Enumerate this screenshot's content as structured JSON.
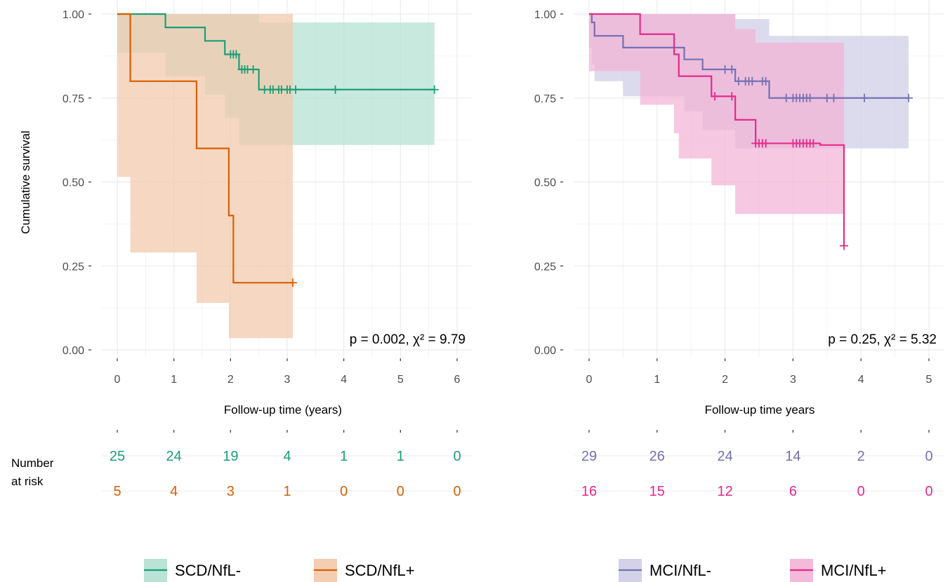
{
  "risk_label": [
    "Number",
    "at risk"
  ],
  "chart_data": [
    {
      "type": "line",
      "subtype": "kaplan-meier",
      "title": "",
      "xlabel": "Follow-up time (years)",
      "ylabel": "Cumulative survival",
      "xlim": [
        0,
        6
      ],
      "ylim": [
        0,
        1
      ],
      "x_ticks": [
        0,
        1,
        2,
        3,
        4,
        5,
        6
      ],
      "y_ticks": [
        "0.00",
        "0.25",
        "0.50",
        "0.75",
        "1.00"
      ],
      "grid": true,
      "legend_position": "bottom",
      "annotation": "p = 0.002, χ² = 9.79",
      "series": [
        {
          "name": "SCD/NfL-",
          "color": "#1b9e77",
          "fill": "#b3e0d1",
          "steps": [
            [
              0,
              1.0
            ],
            [
              0.85,
              0.96
            ],
            [
              1.55,
              0.92
            ],
            [
              1.9,
              0.88
            ],
            [
              2.15,
              0.835
            ],
            [
              2.5,
              0.775
            ],
            [
              5.6,
              0.775
            ]
          ],
          "ci_upper": [
            [
              0,
              1.0
            ],
            [
              0.85,
              1.0
            ],
            [
              1.55,
              1.0
            ],
            [
              1.9,
              1.0
            ],
            [
              2.15,
              1.0
            ],
            [
              2.5,
              0.975
            ],
            [
              5.6,
              0.975
            ]
          ],
          "ci_lower": [
            [
              0,
              1.0
            ],
            [
              0.85,
              0.885
            ],
            [
              1.55,
              0.815
            ],
            [
              1.9,
              0.76
            ],
            [
              2.15,
              0.69
            ],
            [
              2.5,
              0.61
            ],
            [
              5.6,
              0.61
            ]
          ],
          "censor": [
            2.0,
            2.05,
            2.1,
            2.2,
            2.25,
            2.3,
            2.4,
            2.6,
            2.7,
            2.75,
            2.85,
            2.9,
            3.0,
            3.05,
            3.15,
            3.85,
            5.6
          ],
          "at_risk": [
            "25",
            "24",
            "19",
            "4",
            "1",
            "1",
            "0"
          ]
        },
        {
          "name": "SCD/NfL+",
          "color": "#d95f02",
          "fill": "#f2c9ab",
          "steps": [
            [
              0,
              1.0
            ],
            [
              0.23,
              0.8
            ],
            [
              1.4,
              0.6
            ],
            [
              1.97,
              0.4
            ],
            [
              2.05,
              0.2
            ],
            [
              3.1,
              0.2
            ]
          ],
          "ci_upper": [
            [
              0,
              1.0
            ],
            [
              0.23,
              1.0
            ],
            [
              1.4,
              1.0
            ],
            [
              1.97,
              1.0
            ],
            [
              2.05,
              1.0
            ],
            [
              3.1,
              1.0
            ]
          ],
          "ci_lower": [
            [
              0,
              1.0
            ],
            [
              0.23,
              0.515
            ],
            [
              1.4,
              0.29
            ],
            [
              1.97,
              0.14
            ],
            [
              2.05,
              0.035
            ],
            [
              3.1,
              0.035
            ]
          ],
          "censor": [
            3.1
          ],
          "at_risk": [
            "5",
            "4",
            "3",
            "1",
            "0",
            "0",
            "0"
          ]
        }
      ]
    },
    {
      "type": "line",
      "subtype": "kaplan-meier",
      "title": "",
      "xlabel": "Follow-up time years",
      "ylabel": "",
      "xlim": [
        0,
        5
      ],
      "ylim": [
        0,
        1
      ],
      "x_ticks": [
        0,
        1,
        2,
        3,
        4,
        5
      ],
      "y_ticks": [
        "0.00",
        "0.25",
        "0.50",
        "0.75",
        "1.00"
      ],
      "grid": true,
      "legend_position": "bottom",
      "annotation": "p = 0.25, χ² = 5.32",
      "series": [
        {
          "name": "MCI/NfL-",
          "color": "#7570b3",
          "fill": "#cfcde6",
          "steps": [
            [
              0,
              1.0
            ],
            [
              0.04,
              0.975
            ],
            [
              0.08,
              0.935
            ],
            [
              0.5,
              0.9
            ],
            [
              1.4,
              0.865
            ],
            [
              1.67,
              0.835
            ],
            [
              2.15,
              0.8
            ],
            [
              2.65,
              0.75
            ],
            [
              4.7,
              0.75
            ]
          ],
          "ci_upper": [
            [
              0,
              1.0
            ],
            [
              0.04,
              1.0
            ],
            [
              0.08,
              1.0
            ],
            [
              0.5,
              1.0
            ],
            [
              1.4,
              1.0
            ],
            [
              1.67,
              1.0
            ],
            [
              2.15,
              0.985
            ],
            [
              2.65,
              0.935
            ],
            [
              4.7,
              0.935
            ]
          ],
          "ci_lower": [
            [
              0,
              1.0
            ],
            [
              0.04,
              0.9
            ],
            [
              0.08,
              0.85
            ],
            [
              0.5,
              0.8
            ],
            [
              1.4,
              0.755
            ],
            [
              1.67,
              0.71
            ],
            [
              2.15,
              0.655
            ],
            [
              2.65,
              0.6
            ],
            [
              4.7,
              0.6
            ]
          ],
          "censor": [
            2.0,
            2.1,
            2.2,
            2.3,
            2.35,
            2.4,
            2.55,
            2.6,
            2.9,
            3.0,
            3.05,
            3.1,
            3.15,
            3.2,
            3.25,
            3.5,
            3.6,
            4.05,
            4.7
          ],
          "at_risk": [
            "29",
            "26",
            "24",
            "14",
            "2",
            "0"
          ]
        },
        {
          "name": "MCI/NfL+",
          "color": "#e7298a",
          "fill": "#f3b3d5",
          "steps": [
            [
              0,
              1.0
            ],
            [
              0.75,
              0.94
            ],
            [
              1.25,
              0.88
            ],
            [
              1.32,
              0.815
            ],
            [
              1.8,
              0.755
            ],
            [
              2.15,
              0.685
            ],
            [
              2.45,
              0.615
            ],
            [
              3.4,
              0.61
            ],
            [
              3.75,
              0.31
            ]
          ],
          "ci_upper": [
            [
              0,
              1.0
            ],
            [
              0.75,
              1.0
            ],
            [
              1.25,
              1.0
            ],
            [
              1.32,
              1.0
            ],
            [
              1.8,
              1.0
            ],
            [
              2.15,
              0.955
            ],
            [
              2.45,
              0.915
            ],
            [
              3.75,
              0.915
            ]
          ],
          "ci_lower": [
            [
              0,
              1.0
            ],
            [
              0.75,
              0.83
            ],
            [
              1.25,
              0.73
            ],
            [
              1.32,
              0.645
            ],
            [
              1.8,
              0.57
            ],
            [
              2.15,
              0.49
            ],
            [
              2.45,
              0.405
            ],
            [
              3.75,
              0.405
            ]
          ],
          "censor": [
            1.85,
            2.1,
            2.45,
            2.5,
            2.55,
            2.6,
            3.0,
            3.05,
            3.1,
            3.15,
            3.2,
            3.25,
            3.3,
            3.75
          ],
          "at_risk": [
            "16",
            "15",
            "12",
            "6",
            "0",
            "0"
          ]
        }
      ]
    }
  ]
}
